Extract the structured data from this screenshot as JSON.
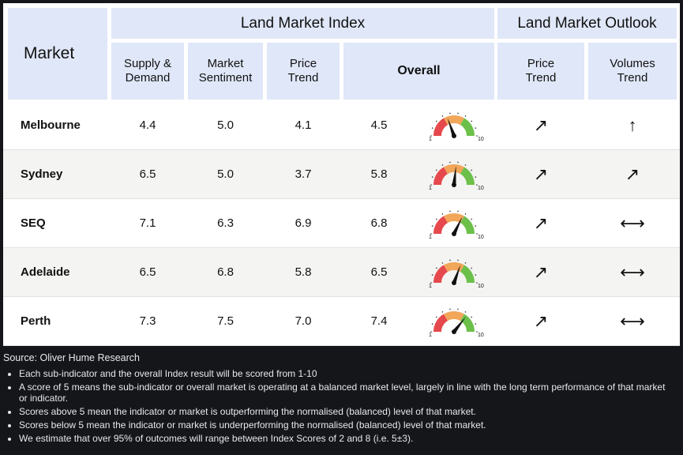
{
  "header": {
    "market": "Market",
    "index_title": "Land Market Index",
    "outlook_title": "Land Market Outlook",
    "supply_demand": [
      "Supply &",
      "Demand"
    ],
    "market_sentiment": [
      "Market",
      "Sentiment"
    ],
    "price_trend": [
      "Price",
      "Trend"
    ],
    "overall": "Overall",
    "outlook_price": [
      "Price",
      "Trend"
    ],
    "outlook_volumes": [
      "Volumes",
      "Trend"
    ]
  },
  "gauge_labels": {
    "min": "1",
    "max": "10"
  },
  "rows": [
    {
      "name": "Melbourne",
      "supply": "4.4",
      "sentiment": "5.0",
      "price": "4.1",
      "overall": "4.5",
      "overall_value": 4.5,
      "price_outlook": "↗",
      "volumes_outlook": "↑",
      "price_outlook_icon": "arrow-up-right-icon",
      "volumes_outlook_icon": "arrow-up-icon"
    },
    {
      "name": "Sydney",
      "supply": "6.5",
      "sentiment": "5.0",
      "price": "3.7",
      "overall": "5.8",
      "overall_value": 5.8,
      "price_outlook": "↗",
      "volumes_outlook": "↗",
      "price_outlook_icon": "arrow-up-right-icon",
      "volumes_outlook_icon": "arrow-up-right-icon"
    },
    {
      "name": "SEQ",
      "supply": "7.1",
      "sentiment": "6.3",
      "price": "6.9",
      "overall": "6.8",
      "overall_value": 6.8,
      "price_outlook": "↗",
      "volumes_outlook": "⟷",
      "price_outlook_icon": "arrow-up-right-icon",
      "volumes_outlook_icon": "arrow-left-right-icon"
    },
    {
      "name": "Adelaide",
      "supply": "6.5",
      "sentiment": "6.8",
      "price": "5.8",
      "overall": "6.5",
      "overall_value": 6.5,
      "price_outlook": "↗",
      "volumes_outlook": "⟷",
      "price_outlook_icon": "arrow-up-right-icon",
      "volumes_outlook_icon": "arrow-left-right-icon"
    },
    {
      "name": "Perth",
      "supply": "7.3",
      "sentiment": "7.5",
      "price": "7.0",
      "overall": "7.4",
      "overall_value": 7.4,
      "price_outlook": "↗",
      "volumes_outlook": "⟷",
      "price_outlook_icon": "arrow-up-right-icon",
      "volumes_outlook_icon": "arrow-left-right-icon"
    }
  ],
  "source": "Source: Oliver Hume Research",
  "notes": [
    "Each sub-indicator and the overall Index result will be scored from 1-10",
    "A score of 5 means the sub-indicator or overall market is operating at a balanced market level, largely in line with the long term performance of that market or indicator.",
    "Scores above 5 mean the indicator or market is outperforming the normalised (balanced) level of that market.",
    "Scores below 5 mean the indicator or market is underperforming the normalised (balanced) level of that market.",
    "We estimate that over 95% of outcomes will range between Index Scores of 2 and 8 (i.e. 5±3)."
  ],
  "colors": {
    "header_bg": "#dfe7f8",
    "gauge_red": "#e5484d",
    "gauge_orange": "#f2a65a",
    "gauge_green": "#6cc04a",
    "page_bg": "#14161a"
  }
}
